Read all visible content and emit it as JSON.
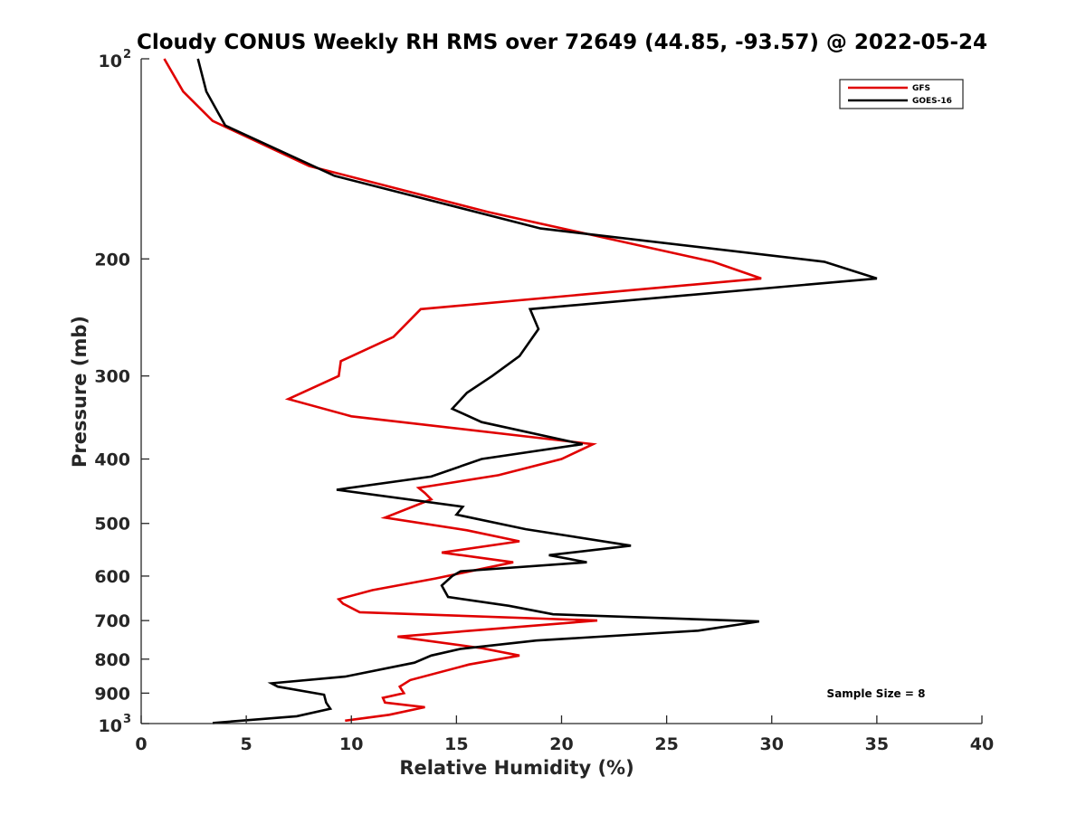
{
  "chart_data": {
    "type": "line",
    "title": "Cloudy CONUS Weekly RH RMS over 72649 (44.85, -93.57) @ 2022-05-24",
    "xlabel": "Relative Humidity (%)",
    "ylabel": "Pressure (mb)",
    "xlim": [
      0,
      40
    ],
    "ylim": [
      100,
      1000
    ],
    "y_scale": "log",
    "y_reversed": true,
    "grid": false,
    "legend_position": "top-right",
    "x_ticks": [
      "0",
      "5",
      "10",
      "15",
      "20",
      "25",
      "30",
      "35",
      "40"
    ],
    "y_ticks": [
      {
        "value": 100,
        "label": "10",
        "sup": "2"
      },
      {
        "value": 200,
        "label": "200"
      },
      {
        "value": 300,
        "label": "300"
      },
      {
        "value": 400,
        "label": "400"
      },
      {
        "value": 500,
        "label": "500"
      },
      {
        "value": 600,
        "label": "600"
      },
      {
        "value": 700,
        "label": "700"
      },
      {
        "value": 800,
        "label": "800"
      },
      {
        "value": 900,
        "label": "900"
      },
      {
        "value": 1000,
        "label": "10",
        "sup": "3"
      }
    ],
    "annotation": "Sample Size = 8",
    "series": [
      {
        "name": "GFS",
        "color": "#e00000",
        "points": [
          [
            1.1,
            100
          ],
          [
            2.0,
            112
          ],
          [
            3.4,
            124
          ],
          [
            8.0,
            145
          ],
          [
            16.5,
            170
          ],
          [
            27.2,
            202
          ],
          [
            29.5,
            214
          ],
          [
            13.3,
            238
          ],
          [
            12.0,
            262
          ],
          [
            9.5,
            285
          ],
          [
            9.4,
            300
          ],
          [
            7.0,
            325
          ],
          [
            10.0,
            345
          ],
          [
            21.5,
            380
          ],
          [
            20.0,
            400
          ],
          [
            17.0,
            423
          ],
          [
            13.2,
            442
          ],
          [
            13.5,
            450
          ],
          [
            13.8,
            460
          ],
          [
            11.6,
            490
          ],
          [
            15.5,
            512
          ],
          [
            18.0,
            532
          ],
          [
            14.3,
            553
          ],
          [
            17.7,
            572
          ],
          [
            14.0,
            605
          ],
          [
            11.0,
            630
          ],
          [
            9.4,
            650
          ],
          [
            9.6,
            660
          ],
          [
            10.4,
            680
          ],
          [
            21.7,
            700
          ],
          [
            12.2,
            740
          ],
          [
            16.2,
            770
          ],
          [
            18.0,
            790
          ],
          [
            15.6,
            815
          ],
          [
            12.8,
            860
          ],
          [
            12.3,
            880
          ],
          [
            12.5,
            900
          ],
          [
            11.5,
            915
          ],
          [
            11.6,
            930
          ],
          [
            13.5,
            945
          ],
          [
            11.8,
            970
          ],
          [
            9.7,
            990
          ]
        ]
      },
      {
        "name": "GOES-16",
        "color": "#000000",
        "points": [
          [
            2.7,
            100
          ],
          [
            3.1,
            112
          ],
          [
            4.0,
            126
          ],
          [
            9.2,
            150
          ],
          [
            19.0,
            180
          ],
          [
            32.5,
            202
          ],
          [
            35.0,
            214
          ],
          [
            18.5,
            238
          ],
          [
            18.9,
            255
          ],
          [
            18.0,
            280
          ],
          [
            16.7,
            300
          ],
          [
            15.5,
            318
          ],
          [
            14.8,
            336
          ],
          [
            16.2,
            352
          ],
          [
            21.0,
            380
          ],
          [
            16.2,
            400
          ],
          [
            13.8,
            425
          ],
          [
            9.3,
            445
          ],
          [
            15.3,
            472
          ],
          [
            15.0,
            485
          ],
          [
            18.3,
            510
          ],
          [
            23.3,
            540
          ],
          [
            19.4,
            558
          ],
          [
            21.2,
            572
          ],
          [
            15.2,
            590
          ],
          [
            14.8,
            600
          ],
          [
            14.3,
            620
          ],
          [
            14.6,
            645
          ],
          [
            17.5,
            665
          ],
          [
            19.6,
            685
          ],
          [
            29.4,
            702
          ],
          [
            26.5,
            725
          ],
          [
            18.8,
            750
          ],
          [
            15.2,
            772
          ],
          [
            13.8,
            790
          ],
          [
            13.0,
            810
          ],
          [
            9.7,
            850
          ],
          [
            6.2,
            870
          ],
          [
            6.5,
            880
          ],
          [
            8.7,
            905
          ],
          [
            8.8,
            930
          ],
          [
            9.0,
            950
          ],
          [
            7.4,
            975
          ],
          [
            3.4,
            998
          ]
        ]
      }
    ]
  }
}
